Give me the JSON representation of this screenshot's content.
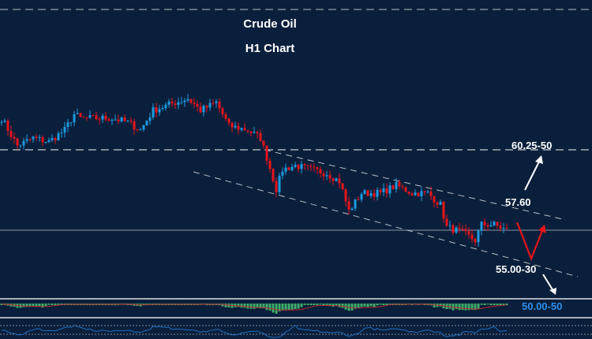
{
  "header": {
    "title": "Crude Oil",
    "subtitle": "H1 Chart"
  },
  "chart_data": {
    "type": "candlestick",
    "title": "Crude Oil",
    "subtitle": "H1 Chart",
    "ylim": [
      48.0,
      67.0
    ],
    "colors": {
      "up": "#1e9be0",
      "down": "#e8141c",
      "background": "#0a1f3b",
      "level_blue": "#2f8ff0"
    },
    "close_path": [
      {
        "bar": 0,
        "price": 61.75
      },
      {
        "bar": 5,
        "price": 60.44
      },
      {
        "bar": 10,
        "price": 60.81
      },
      {
        "bar": 15,
        "price": 60.63
      },
      {
        "bar": 20,
        "price": 61.19
      },
      {
        "bar": 23,
        "price": 61.94
      },
      {
        "bar": 25,
        "price": 61.75
      },
      {
        "bar": 35,
        "price": 61.75
      },
      {
        "bar": 40,
        "price": 61.56
      },
      {
        "bar": 44,
        "price": 61.19
      },
      {
        "bar": 48,
        "price": 62.13
      },
      {
        "bar": 55,
        "price": 62.5
      },
      {
        "bar": 59,
        "price": 62.69
      },
      {
        "bar": 63,
        "price": 62.13
      },
      {
        "bar": 68,
        "price": 62.5
      },
      {
        "bar": 72,
        "price": 61.38
      },
      {
        "bar": 78,
        "price": 61.19
      },
      {
        "bar": 82,
        "price": 60.81
      },
      {
        "bar": 84,
        "price": 59.88
      },
      {
        "bar": 87,
        "price": 58.38
      },
      {
        "bar": 89,
        "price": 59.31
      },
      {
        "bar": 93,
        "price": 59.5
      },
      {
        "bar": 98,
        "price": 59.31
      },
      {
        "bar": 103,
        "price": 59.13
      },
      {
        "bar": 107,
        "price": 58.75
      },
      {
        "bar": 110,
        "price": 57.33
      },
      {
        "bar": 114,
        "price": 58.19
      },
      {
        "bar": 120,
        "price": 58.19
      },
      {
        "bar": 125,
        "price": 58.56
      },
      {
        "bar": 130,
        "price": 58.19
      },
      {
        "bar": 135,
        "price": 58.19
      },
      {
        "bar": 139,
        "price": 57.63
      },
      {
        "bar": 141,
        "price": 56.58
      },
      {
        "bar": 146,
        "price": 56.31
      },
      {
        "bar": 150,
        "price": 55.94
      },
      {
        "bar": 152,
        "price": 56.69
      },
      {
        "bar": 156,
        "price": 56.69
      },
      {
        "bar": 160,
        "price": 56.43
      }
    ],
    "levels": [
      {
        "label": "60.25-50",
        "price": 60.25,
        "style": "dashed"
      },
      {
        "label": "57.60",
        "price": 57.6,
        "style": "channel-top"
      },
      {
        "label": "55.00-30",
        "price": 55.0,
        "style": "channel-bottom"
      },
      {
        "label": "50.00-50",
        "price": 50.0,
        "style": "target"
      }
    ],
    "current_price": 56.43,
    "indicators": [
      "MACD",
      "RSI"
    ]
  }
}
